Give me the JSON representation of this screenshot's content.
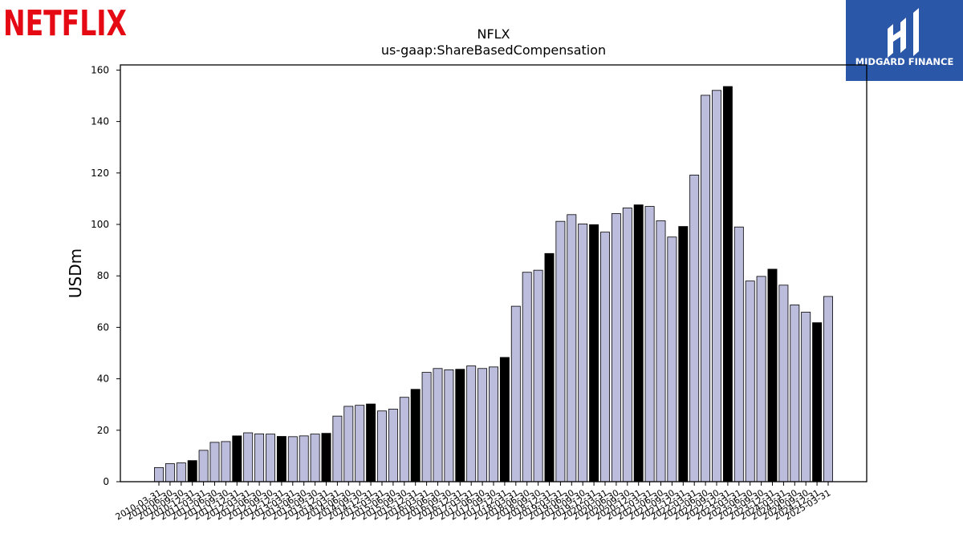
{
  "brand": {
    "left_logo_text": "NETFLIX",
    "left_logo_color": "#e50914",
    "right_logo_text": "MIDGARD FINANCE",
    "right_logo_bg": "#2a57a8"
  },
  "chart_data": {
    "type": "bar",
    "title": "NFLX",
    "subtitle": "us-gaap:ShareBasedCompensation",
    "xlabel": "",
    "ylabel": "USDm",
    "ylim": [
      0,
      162
    ],
    "yticks": [
      0,
      20,
      40,
      60,
      80,
      100,
      120,
      140,
      160
    ],
    "grid": false,
    "bar_color": "#bcbddc",
    "highlight_color": "#000000",
    "highlight_rule": "Q4 (12-31) periods drawn in black",
    "categories": [
      "2010-03-31",
      "2010-06-30",
      "2010-09-30",
      "2010-12-31",
      "2011-03-31",
      "2011-06-30",
      "2011-09-30",
      "2011-12-31",
      "2012-03-31",
      "2012-06-30",
      "2012-09-30",
      "2012-12-31",
      "2013-03-31",
      "2013-06-30",
      "2013-09-30",
      "2013-12-31",
      "2014-03-31",
      "2014-06-30",
      "2014-09-30",
      "2014-12-31",
      "2015-03-31",
      "2015-06-30",
      "2015-09-30",
      "2015-12-31",
      "2016-03-31",
      "2016-06-30",
      "2016-09-30",
      "2016-12-31",
      "2017-03-31",
      "2017-06-30",
      "2017-09-30",
      "2017-12-31",
      "2018-03-31",
      "2018-06-30",
      "2018-09-30",
      "2018-12-31",
      "2019-03-31",
      "2019-06-30",
      "2019-09-30",
      "2019-12-31",
      "2020-03-31",
      "2020-06-30",
      "2020-09-30",
      "2020-12-31",
      "2021-03-31",
      "2021-06-30",
      "2021-09-30",
      "2021-12-31",
      "2022-03-31",
      "2022-06-30",
      "2022-09-30",
      "2022-12-31",
      "2023-03-31",
      "2023-06-30",
      "2023-09-30",
      "2023-12-31",
      "2024-03-31",
      "2024-06-30",
      "2024-09-30",
      "2024-12-31",
      "2025-03-31"
    ],
    "values": [
      5.5,
      7.0,
      7.3,
      8.2,
      12.2,
      15.3,
      15.6,
      17.8,
      19.0,
      18.6,
      18.5,
      17.6,
      17.5,
      17.8,
      18.5,
      18.8,
      25.5,
      29.3,
      29.7,
      30.2,
      27.5,
      28.2,
      32.8,
      35.9,
      42.5,
      44.0,
      43.5,
      43.7,
      45.0,
      44.0,
      44.6,
      48.3,
      68.2,
      81.4,
      82.2,
      88.7,
      101.2,
      103.8,
      100.2,
      99.9,
      97.0,
      104.2,
      106.4,
      107.6,
      107.0,
      101.4,
      95.1,
      99.2,
      119.2,
      150.2,
      152.1,
      153.6,
      99.0,
      78.0,
      79.8,
      82.6,
      76.4,
      68.7,
      65.9,
      61.8,
      72.0
    ],
    "highlight": [
      false,
      false,
      false,
      true,
      false,
      false,
      false,
      true,
      false,
      false,
      false,
      true,
      false,
      false,
      false,
      true,
      false,
      false,
      false,
      true,
      false,
      false,
      false,
      true,
      false,
      false,
      false,
      true,
      false,
      false,
      false,
      true,
      false,
      false,
      false,
      true,
      false,
      false,
      false,
      true,
      false,
      false,
      false,
      true,
      false,
      false,
      false,
      true,
      false,
      false,
      false,
      true,
      false,
      false,
      false,
      true,
      false,
      false,
      false,
      true,
      false
    ]
  }
}
